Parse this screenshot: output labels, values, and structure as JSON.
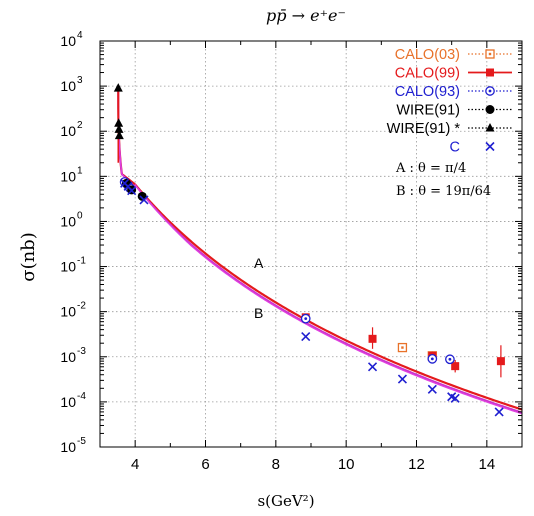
{
  "chart_data": {
    "type": "scatter",
    "title": "pp̄ → e⁺e⁻",
    "xlabel": "s(GeV²)",
    "ylabel": "σ(nb)",
    "x_scale": "linear",
    "y_scale": "log",
    "xlim": [
      3,
      15
    ],
    "ylim": [
      1e-05,
      10000
    ],
    "x_ticks": [
      4,
      6,
      8,
      10,
      12,
      14
    ],
    "y_ticks": [
      {
        "value": 1e-05,
        "base": "10",
        "exp": "-5"
      },
      {
        "value": 0.0001,
        "base": "10",
        "exp": "-4"
      },
      {
        "value": 0.001,
        "base": "10",
        "exp": "-3"
      },
      {
        "value": 0.01,
        "base": "10",
        "exp": "-2"
      },
      {
        "value": 0.1,
        "base": "10",
        "exp": "-1"
      },
      {
        "value": 1,
        "base": "10",
        "exp": "0"
      },
      {
        "value": 10,
        "base": "10",
        "exp": "1"
      },
      {
        "value": 100,
        "base": "10",
        "exp": "2"
      },
      {
        "value": 1000,
        "base": "10",
        "exp": "3"
      },
      {
        "value": 10000,
        "base": "10",
        "exp": "4"
      }
    ],
    "grid": true,
    "legend_position": "top-right",
    "series": [
      {
        "name": "CALO(03)",
        "color": "#e8722a",
        "marker": "open-square",
        "line": "dotted",
        "points": [
          {
            "x": 11.6,
            "y": 0.0016
          },
          {
            "x": 12.45,
            "y": 0.00105
          }
        ]
      },
      {
        "name": "CALO(99)",
        "color": "#e41a1c",
        "marker": "filled-square",
        "line": "solid",
        "points": [
          {
            "x": 8.85,
            "y": 0.0075,
            "ylo": 0.0062,
            "yhi": 0.009
          },
          {
            "x": 10.75,
            "y": 0.0025,
            "ylo": 0.0015,
            "yhi": 0.0045
          },
          {
            "x": 12.45,
            "y": 0.00105,
            "ylo": 0.00085,
            "yhi": 0.0013
          },
          {
            "x": 13.1,
            "y": 0.00062,
            "ylo": 0.00045,
            "yhi": 0.00085
          },
          {
            "x": 14.4,
            "y": 0.0008,
            "ylo": 0.00035,
            "yhi": 0.0018
          }
        ]
      },
      {
        "name": "CALO(93)",
        "color": "#1f1fd0",
        "marker": "open-circle-dot",
        "line": "dotted",
        "points": [
          {
            "x": 3.7,
            "y": 7.5
          },
          {
            "x": 3.78,
            "y": 6.5
          },
          {
            "x": 3.85,
            "y": 5.5
          },
          {
            "x": 8.85,
            "y": 0.007
          },
          {
            "x": 12.45,
            "y": 0.0009
          },
          {
            "x": 12.95,
            "y": 0.00088
          }
        ]
      },
      {
        "name": "WIRE(91)",
        "color": "#000000",
        "marker": "filled-circle",
        "line": "dotted",
        "points": [
          {
            "x": 3.75,
            "y": 7.0
          },
          {
            "x": 3.9,
            "y": 5.0
          },
          {
            "x": 4.2,
            "y": 3.6
          }
        ]
      },
      {
        "name": "WIRE(91) *",
        "color": "#000000",
        "marker": "filled-triangle",
        "line": "dotted",
        "points": [
          {
            "x": 3.52,
            "y": 900
          },
          {
            "x": 3.53,
            "y": 150
          },
          {
            "x": 3.54,
            "y": 110
          },
          {
            "x": 3.55,
            "y": 80
          }
        ]
      },
      {
        "name": "C",
        "color": "#1f1fd0",
        "marker": "x",
        "line": "none",
        "points": [
          {
            "x": 3.7,
            "y": 7.0
          },
          {
            "x": 3.8,
            "y": 6.0
          },
          {
            "x": 3.9,
            "y": 4.8
          },
          {
            "x": 4.25,
            "y": 3.0
          },
          {
            "x": 8.85,
            "y": 0.0028
          },
          {
            "x": 10.75,
            "y": 0.0006
          },
          {
            "x": 11.6,
            "y": 0.00032
          },
          {
            "x": 12.45,
            "y": 0.00019
          },
          {
            "x": 13.0,
            "y": 0.00013
          },
          {
            "x": 13.1,
            "y": 0.00012
          },
          {
            "x": 14.35,
            "y": 6e-05
          }
        ]
      }
    ],
    "curves": [
      {
        "id": "A",
        "color": "#e41a1c",
        "width": 2.2,
        "offset": 0.0
      },
      {
        "id": "B",
        "color": "#cc33cc",
        "width": 1.8,
        "offset": -0.065
      },
      {
        "id": "B2",
        "color": "#e040e0",
        "width": 1.2,
        "offset": -0.095
      }
    ],
    "annotations": {
      "curve_a_label": "A",
      "curve_b_label": "B",
      "angle_a": "A : θ = π/4",
      "angle_b": "B : θ = 19π/64"
    }
  }
}
